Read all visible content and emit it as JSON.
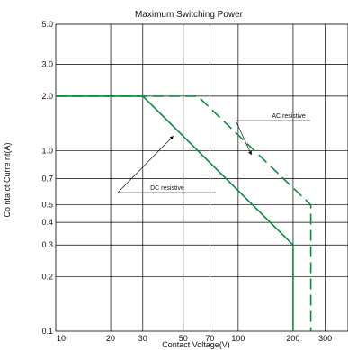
{
  "chart_data": {
    "type": "line",
    "title": "Maximum Switching Power",
    "xlabel": "Contact Voltage(V)",
    "ylabel": "Co nta ct Curre nt(A)",
    "x_scale": "log",
    "y_scale": "log",
    "xlim": [
      10,
      400
    ],
    "ylim": [
      0.1,
      5.0
    ],
    "x_ticks": [
      10,
      20,
      30,
      50,
      70,
      100,
      200,
      300
    ],
    "x_tick_labels": [
      "10",
      "20",
      "30",
      "50",
      "70",
      "100",
      "200",
      "300"
    ],
    "y_ticks": [
      0.1,
      0.2,
      0.3,
      0.4,
      0.5,
      0.7,
      1.0,
      2.0,
      3.0,
      5.0
    ],
    "y_tick_labels": [
      "0.1",
      "0.2",
      "0.3",
      "0.4",
      "0.5",
      "0.7",
      "1.0",
      "2.0",
      "3.0",
      "5.0"
    ],
    "grid": true,
    "line_color": "#0a8a3a",
    "series": [
      {
        "name": "DC resistive",
        "style": "solid",
        "points": [
          [
            10,
            2.0
          ],
          [
            30,
            2.0
          ],
          [
            200,
            0.3
          ],
          [
            200,
            0.1
          ]
        ]
      },
      {
        "name": "AC resistive",
        "style": "dashed",
        "points": [
          [
            10,
            2.0
          ],
          [
            60,
            2.0
          ],
          [
            250,
            0.5
          ],
          [
            250,
            0.1
          ]
        ]
      }
    ],
    "annotations": [
      {
        "text": "AC resistive",
        "arrow_to": [
          118,
          0.95
        ]
      },
      {
        "text": "DC resistive",
        "arrow_to": [
          44,
          1.2
        ]
      }
    ]
  }
}
